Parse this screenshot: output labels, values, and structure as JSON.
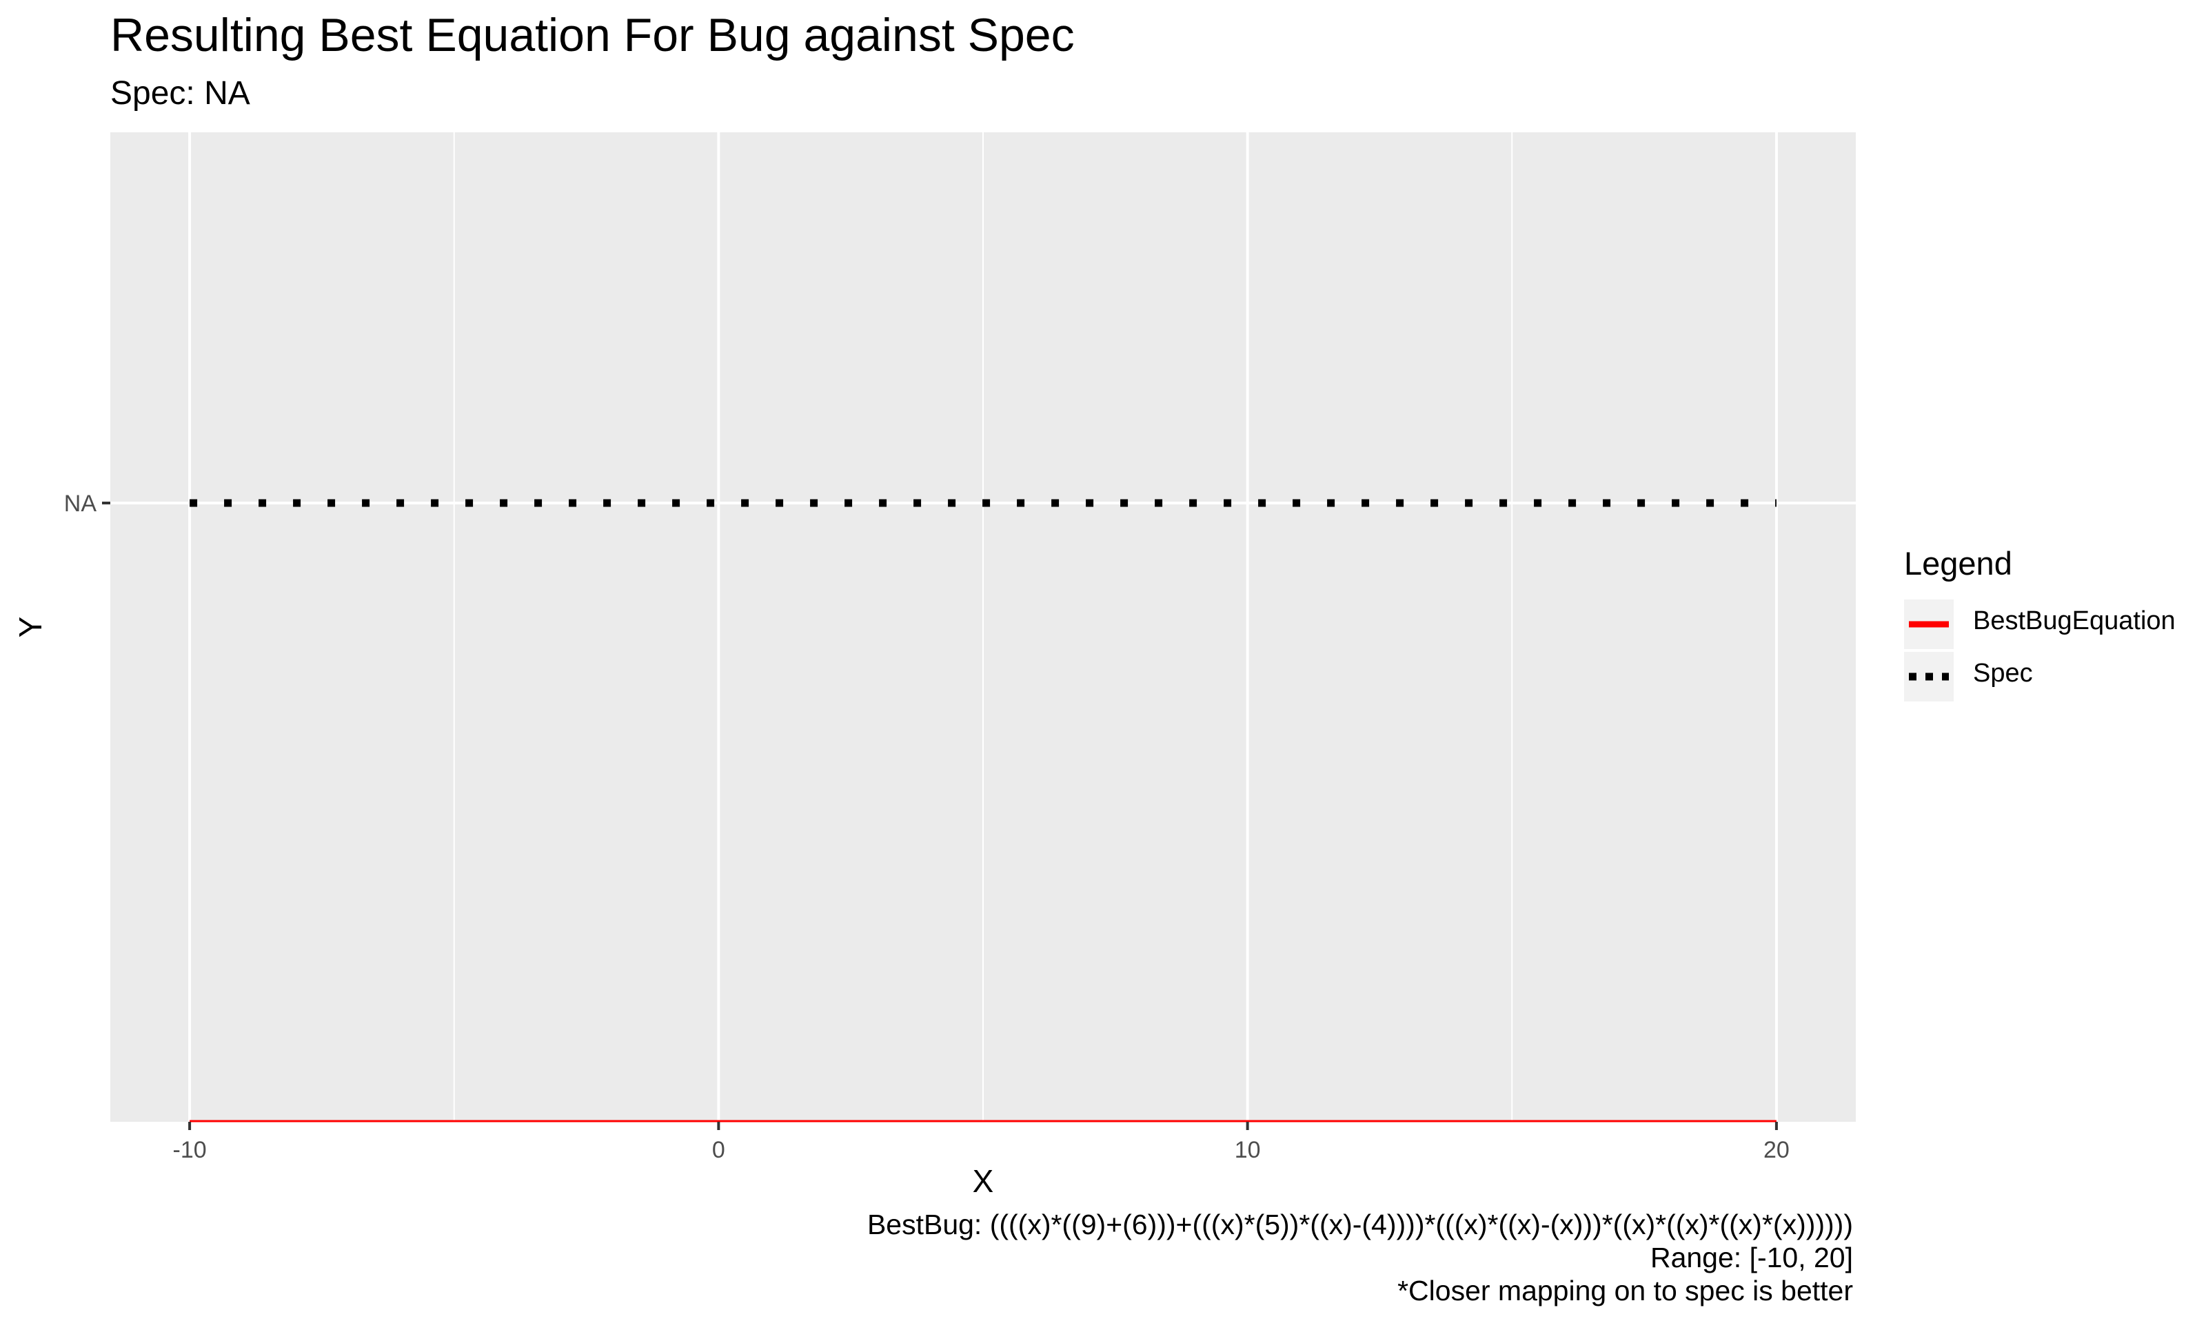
{
  "chart_data": {
    "type": "line",
    "title": "Resulting Best Equation For Bug against Spec",
    "subtitle": "Spec: NA",
    "xlabel": "X",
    "ylabel": "Y",
    "xlim": [
      -11.5,
      21.5
    ],
    "x_ticks": [
      -10,
      0,
      10,
      20
    ],
    "x_tick_labels": [
      "-10",
      "0",
      "10",
      "20"
    ],
    "y_tick_labels": [
      "NA"
    ],
    "grid": true,
    "legend": {
      "title": "Legend",
      "position": "right",
      "entries": [
        "BestBugEquation",
        "Spec"
      ]
    },
    "series": [
      {
        "name": "BestBugEquation",
        "color": "#ff0000",
        "line_style": "solid",
        "x": [
          -10,
          20
        ]
      },
      {
        "name": "Spec",
        "color": "#000000",
        "line_style": "dotted",
        "x": [
          -10,
          20
        ],
        "y_label": "NA"
      }
    ],
    "caption": [
      "BestBug: ((((x)*((9)+(6)))+(((x)*(5))*((x)-(4))))*(((x)*((x)-(x)))*((x)*((x)*((x)*(x))))))",
      "Range: [-10, 20]",
      "*Closer mapping on to spec is better"
    ]
  }
}
